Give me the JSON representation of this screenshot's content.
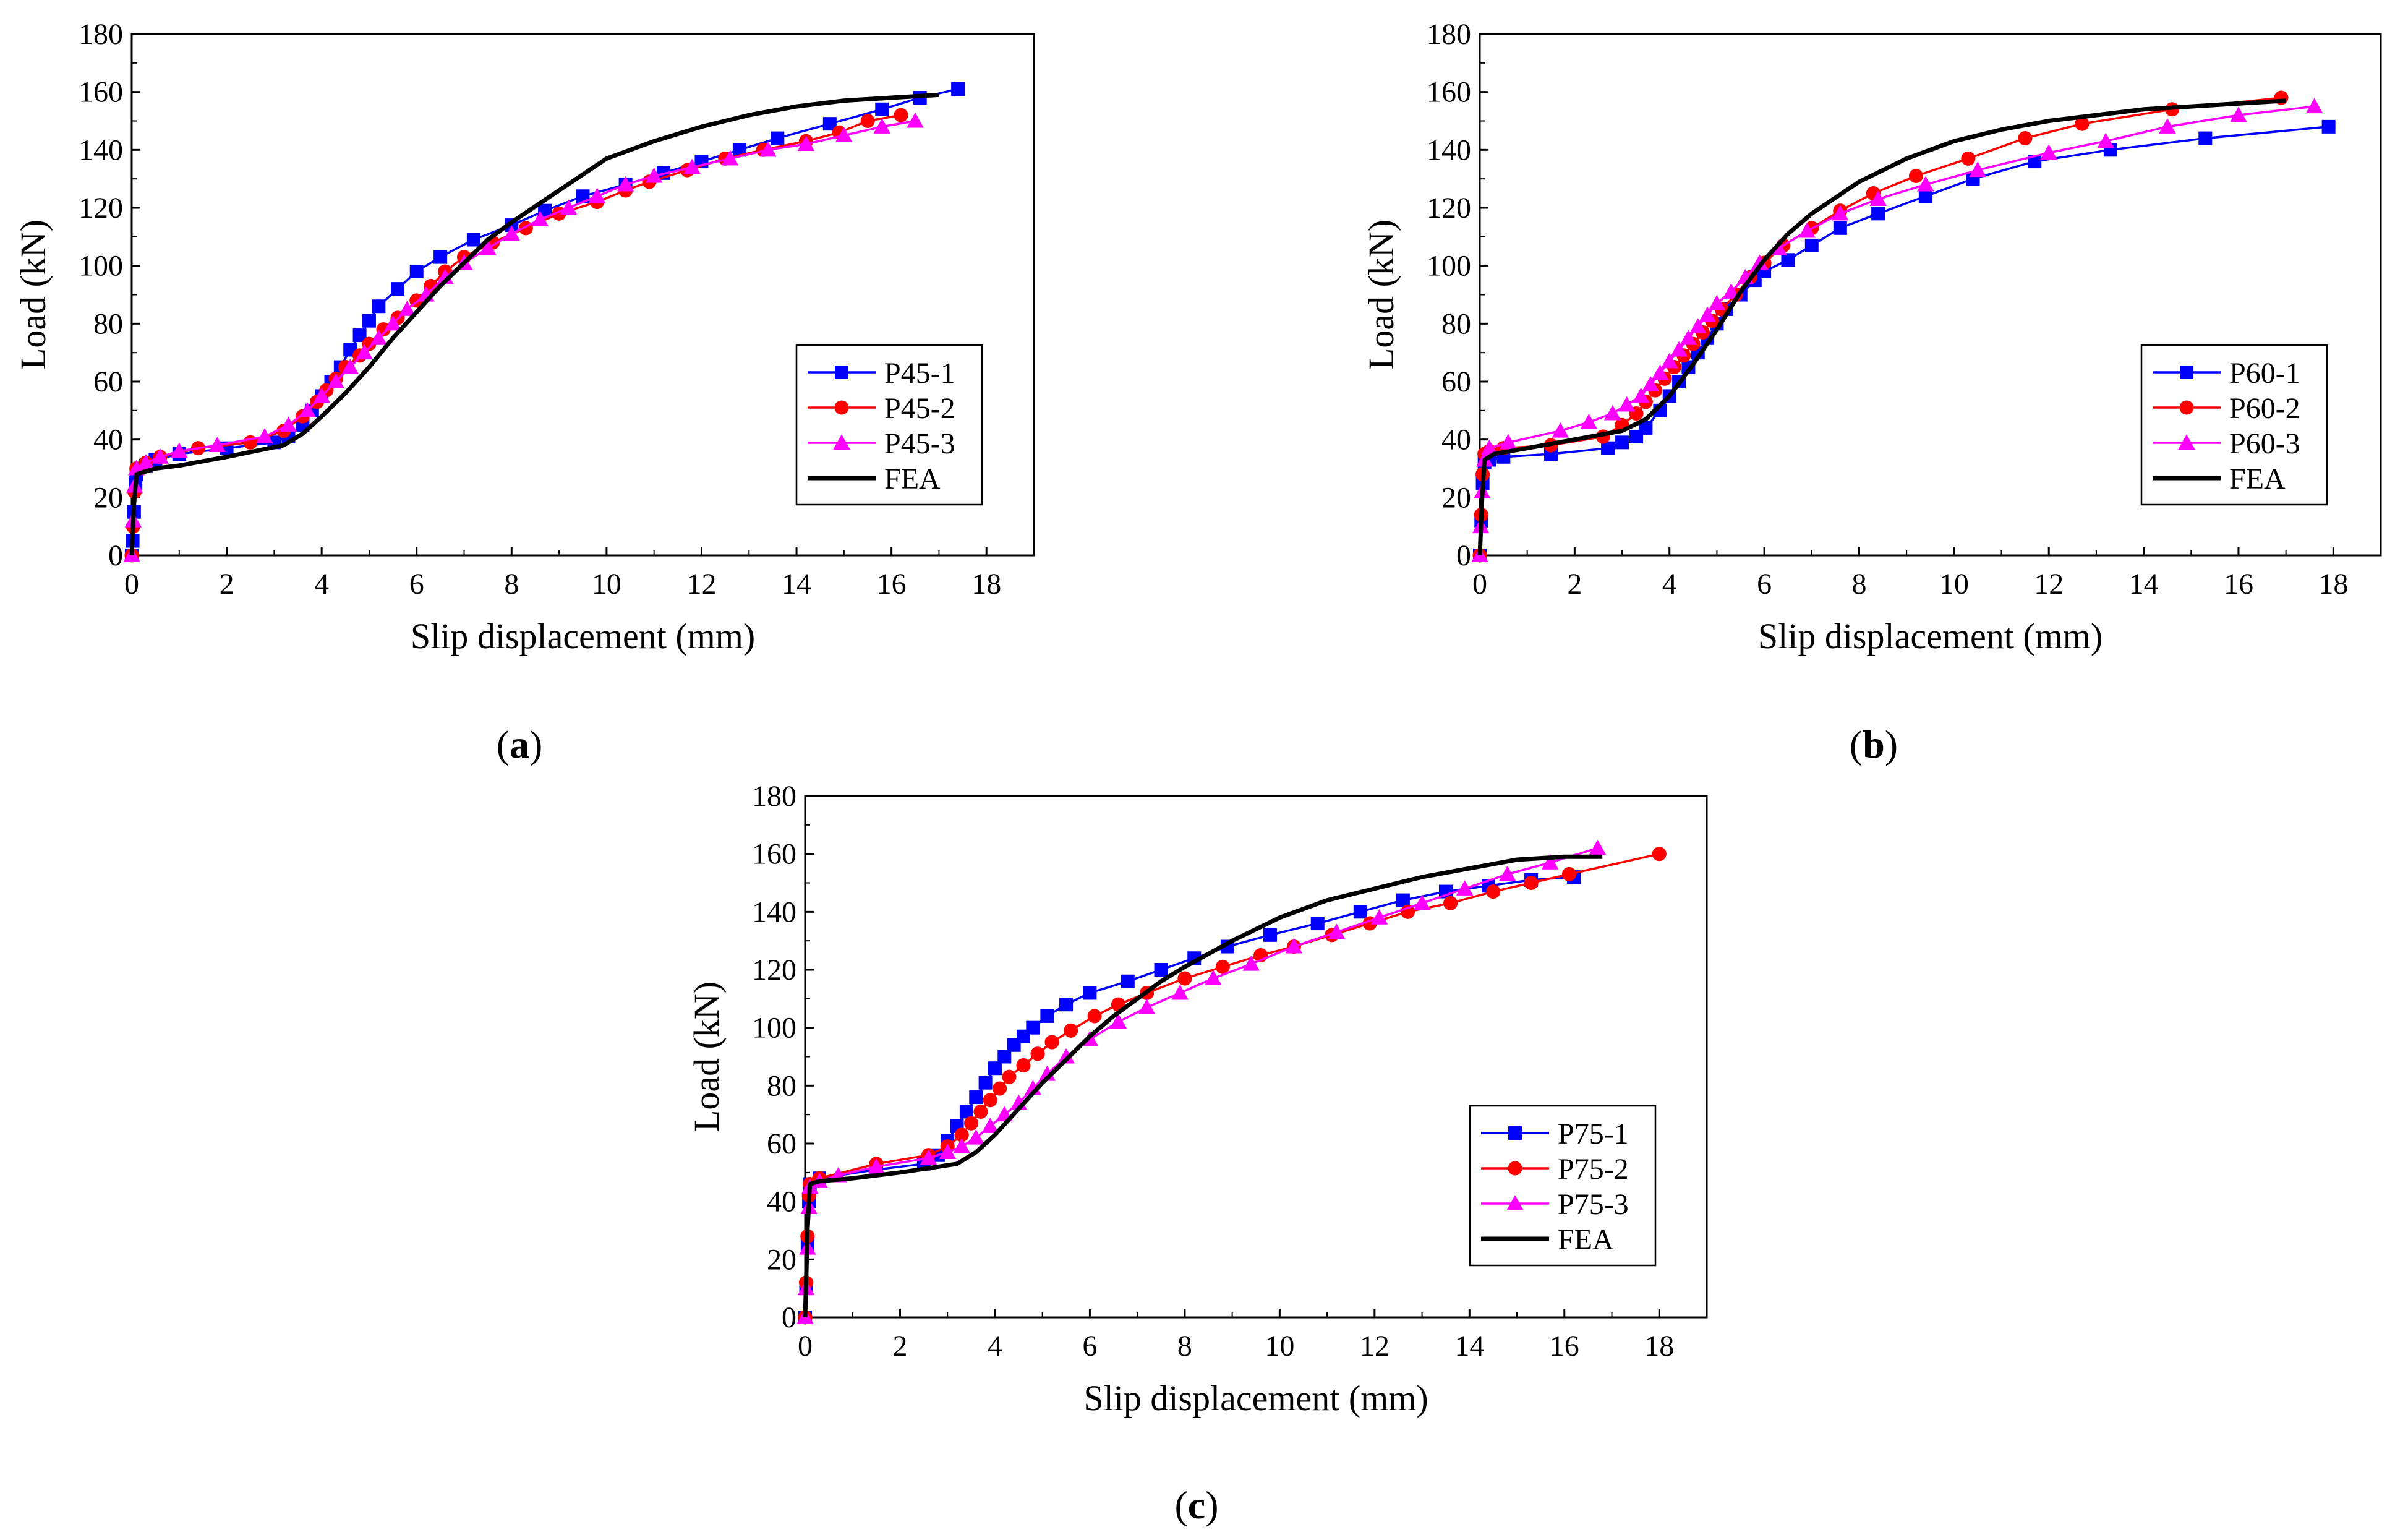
{
  "chart_data": [
    {
      "type": "line",
      "panel_label": "a",
      "xlabel": "Slip displacement (mm)",
      "ylabel": "Load (kN)",
      "xlim": [
        0,
        19
      ],
      "ylim": [
        0,
        180
      ],
      "xticks": [
        "0",
        "2",
        "4",
        "6",
        "8",
        "10",
        "12",
        "14",
        "16",
        "18"
      ],
      "yticks": [
        "0",
        "20",
        "40",
        "60",
        "80",
        "100",
        "120",
        "140",
        "160",
        "180"
      ],
      "legend_position": "lower-right",
      "series": [
        {
          "name": "P45-1",
          "color": "#0000ff",
          "marker": "square",
          "x": [
            0,
            0.02,
            0.05,
            0.08,
            0.1,
            0.3,
            0.5,
            1,
            2,
            3,
            3.3,
            3.6,
            3.8,
            4.0,
            4.2,
            4.4,
            4.6,
            4.8,
            5.0,
            5.2,
            5.6,
            6.0,
            6.5,
            7.2,
            8.0,
            8.7,
            9.5,
            10.4,
            11.2,
            12.0,
            12.8,
            13.6,
            14.7,
            15.8,
            16.6,
            17.4
          ],
          "y": [
            0,
            5,
            15,
            25,
            28,
            31,
            33,
            35,
            37,
            39,
            41,
            45,
            50,
            55,
            60,
            65,
            71,
            76,
            81,
            86,
            92,
            98,
            103,
            109,
            114,
            119,
            124,
            128,
            132,
            136,
            140,
            144,
            149,
            154,
            158,
            161
          ]
        },
        {
          "name": "P45-2",
          "color": "#ff0000",
          "marker": "circle",
          "x": [
            0,
            0.03,
            0.06,
            0.1,
            0.3,
            0.6,
            1.4,
            2.5,
            3.2,
            3.6,
            3.9,
            4.1,
            4.3,
            4.5,
            4.8,
            5.0,
            5.3,
            5.6,
            6.0,
            6.3,
            6.6,
            7.0,
            7.6,
            8.3,
            9.0,
            9.8,
            10.4,
            10.9,
            11.7,
            12.5,
            13.3,
            14.2,
            14.9,
            15.5,
            16.2
          ],
          "y": [
            0,
            10,
            22,
            30,
            32,
            34,
            37,
            39,
            43,
            48,
            53,
            57,
            61,
            65,
            69,
            73,
            78,
            82,
            88,
            93,
            98,
            103,
            108,
            113,
            118,
            122,
            126,
            129,
            133,
            137,
            140,
            143,
            146,
            150,
            152
          ]
        },
        {
          "name": "P45-3",
          "color": "#ff00ff",
          "marker": "triangle",
          "x": [
            0,
            0.03,
            0.06,
            0.1,
            0.3,
            0.6,
            1.0,
            1.8,
            2.8,
            3.3,
            3.7,
            4.0,
            4.3,
            4.6,
            4.9,
            5.2,
            5.5,
            5.8,
            6.2,
            6.6,
            7.0,
            7.5,
            8.0,
            8.6,
            9.2,
            9.8,
            10.4,
            11.0,
            11.8,
            12.6,
            13.4,
            14.2,
            15.0,
            15.8,
            16.5
          ],
          "y": [
            0,
            12,
            24,
            30,
            32,
            34,
            36,
            38,
            41,
            45,
            50,
            55,
            60,
            65,
            70,
            75,
            80,
            85,
            90,
            96,
            101,
            106,
            111,
            116,
            120,
            124,
            128,
            131,
            134,
            137,
            140,
            142,
            145,
            148,
            150
          ]
        },
        {
          "name": "FEA",
          "color": "#000000",
          "marker": "none",
          "x": [
            0,
            0.05,
            0.1,
            0.5,
            1,
            2,
            3.2,
            3.6,
            4.0,
            4.5,
            5.0,
            5.5,
            6.0,
            6.5,
            7.0,
            7.5,
            8.0,
            9.0,
            10.0,
            11.0,
            12.0,
            13.0,
            14.0,
            15.0,
            16.0,
            17.0
          ],
          "y": [
            0,
            18,
            28,
            30,
            31,
            34,
            38,
            42,
            48,
            56,
            65,
            75,
            84,
            93,
            101,
            109,
            115,
            126,
            137,
            143,
            148,
            152,
            155,
            157,
            158,
            159
          ]
        }
      ]
    },
    {
      "type": "line",
      "panel_label": "b",
      "xlabel": "Slip displacement (mm)",
      "ylabel": "Load (kN)",
      "xlim": [
        0,
        19
      ],
      "ylim": [
        0,
        180
      ],
      "xticks": [
        "0",
        "2",
        "4",
        "6",
        "8",
        "10",
        "12",
        "14",
        "16",
        "18"
      ],
      "yticks": [
        "0",
        "20",
        "40",
        "60",
        "80",
        "100",
        "120",
        "140",
        "160",
        "180"
      ],
      "legend_position": "lower-right",
      "series": [
        {
          "name": "P60-1",
          "color": "#0000ff",
          "marker": "square",
          "x": [
            0,
            0.03,
            0.06,
            0.1,
            0.2,
            0.5,
            1.5,
            2.7,
            3.0,
            3.3,
            3.5,
            3.8,
            4.0,
            4.2,
            4.4,
            4.6,
            4.8,
            5.0,
            5.2,
            5.5,
            5.8,
            6.0,
            6.5,
            7.0,
            7.6,
            8.4,
            9.4,
            10.4,
            11.7,
            13.3,
            15.3,
            17.9
          ],
          "y": [
            0,
            12,
            25,
            32,
            33,
            34,
            35,
            37,
            39,
            41,
            44,
            50,
            55,
            60,
            65,
            70,
            75,
            80,
            85,
            90,
            95,
            98,
            102,
            107,
            113,
            118,
            124,
            130,
            136,
            140,
            144,
            148
          ]
        },
        {
          "name": "P60-2",
          "color": "#ff0000",
          "marker": "circle",
          "x": [
            0,
            0.03,
            0.06,
            0.1,
            0.2,
            0.5,
            1.5,
            2.6,
            3.0,
            3.3,
            3.5,
            3.7,
            3.9,
            4.1,
            4.3,
            4.5,
            4.7,
            4.9,
            5.1,
            5.4,
            5.7,
            6.0,
            6.4,
            7.0,
            7.6,
            8.3,
            9.2,
            10.3,
            11.5,
            12.7,
            14.6,
            16.9
          ],
          "y": [
            0,
            14,
            28,
            35,
            36,
            37,
            38,
            41,
            45,
            49,
            53,
            57,
            61,
            65,
            69,
            73,
            77,
            81,
            85,
            90,
            96,
            101,
            107,
            113,
            119,
            125,
            131,
            137,
            144,
            149,
            154,
            158
          ]
        },
        {
          "name": "P60-3",
          "color": "#ff00ff",
          "marker": "triangle",
          "x": [
            0,
            0.02,
            0.05,
            0.1,
            0.2,
            0.6,
            1.7,
            2.3,
            2.8,
            3.1,
            3.4,
            3.6,
            3.8,
            4.0,
            4.2,
            4.4,
            4.6,
            4.8,
            5.0,
            5.3,
            5.6,
            5.9,
            6.3,
            6.9,
            7.6,
            8.4,
            9.4,
            10.5,
            12.0,
            13.2,
            14.5,
            16.0,
            17.6
          ],
          "y": [
            0,
            10,
            22,
            33,
            37,
            39,
            43,
            46,
            49,
            52,
            55,
            59,
            63,
            67,
            71,
            75,
            79,
            83,
            87,
            91,
            96,
            101,
            106,
            112,
            118,
            123,
            128,
            133,
            139,
            143,
            148,
            152,
            155
          ]
        },
        {
          "name": "FEA",
          "color": "#000000",
          "marker": "none",
          "x": [
            0,
            0.05,
            0.1,
            0.3,
            1,
            2,
            3.0,
            3.5,
            4.0,
            4.5,
            5.0,
            5.5,
            6.0,
            6.5,
            7.0,
            8.0,
            9.0,
            10.0,
            11.0,
            12.0,
            13.0,
            14.0,
            15.0,
            16.0,
            17.0
          ],
          "y": [
            0,
            20,
            33,
            35,
            37,
            40,
            43,
            47,
            55,
            66,
            78,
            91,
            102,
            111,
            118,
            129,
            137,
            143,
            147,
            150,
            152,
            154,
            155,
            156,
            157
          ]
        }
      ]
    },
    {
      "type": "line",
      "panel_label": "c",
      "xlabel": "Slip displacement (mm)",
      "ylabel": "Load (kN)",
      "xlim": [
        0,
        19
      ],
      "ylim": [
        0,
        180
      ],
      "xticks": [
        "0",
        "2",
        "4",
        "6",
        "8",
        "10",
        "12",
        "14",
        "16",
        "18"
      ],
      "yticks": [
        "0",
        "20",
        "40",
        "60",
        "80",
        "100",
        "120",
        "140",
        "160",
        "180"
      ],
      "legend_position": "lower-right",
      "series": [
        {
          "name": "P75-1",
          "color": "#0000ff",
          "marker": "square",
          "x": [
            0,
            0.02,
            0.05,
            0.08,
            0.1,
            0.3,
            1.5,
            2.5,
            2.8,
            3.0,
            3.2,
            3.4,
            3.6,
            3.8,
            4.0,
            4.2,
            4.4,
            4.6,
            4.8,
            5.1,
            5.5,
            6.0,
            6.8,
            7.5,
            8.2,
            8.9,
            9.8,
            10.8,
            11.7,
            12.6,
            13.5,
            14.4,
            15.3,
            16.2
          ],
          "y": [
            0,
            10,
            25,
            40,
            46,
            48,
            51,
            53,
            56,
            61,
            66,
            71,
            76,
            81,
            86,
            90,
            94,
            97,
            100,
            104,
            108,
            112,
            116,
            120,
            124,
            128,
            132,
            136,
            140,
            144,
            147,
            149,
            151,
            152
          ]
        },
        {
          "name": "P75-2",
          "color": "#ff0000",
          "marker": "circle",
          "x": [
            0,
            0.02,
            0.05,
            0.08,
            0.1,
            0.3,
            1.5,
            2.6,
            3.0,
            3.3,
            3.5,
            3.7,
            3.9,
            4.1,
            4.3,
            4.6,
            4.9,
            5.2,
            5.6,
            6.1,
            6.6,
            7.2,
            8.0,
            8.8,
            9.6,
            10.3,
            11.1,
            11.9,
            12.7,
            13.6,
            14.5,
            15.3,
            16.1,
            18.0
          ],
          "y": [
            0,
            12,
            28,
            42,
            46,
            48,
            53,
            56,
            59,
            63,
            67,
            71,
            75,
            79,
            83,
            87,
            91,
            95,
            99,
            104,
            108,
            112,
            117,
            121,
            125,
            128,
            132,
            136,
            140,
            143,
            147,
            150,
            153,
            160
          ]
        },
        {
          "name": "P75-3",
          "color": "#ff00ff",
          "marker": "triangle",
          "x": [
            0,
            0.02,
            0.05,
            0.08,
            0.1,
            0.3,
            0.7,
            1.5,
            2.6,
            3.0,
            3.3,
            3.6,
            3.9,
            4.2,
            4.5,
            4.8,
            5.1,
            5.5,
            6.0,
            6.6,
            7.2,
            7.9,
            8.6,
            9.4,
            10.3,
            11.2,
            12.1,
            13.0,
            13.9,
            14.8,
            15.7,
            16.7
          ],
          "y": [
            0,
            10,
            24,
            38,
            45,
            47,
            49,
            52,
            55,
            57,
            59,
            62,
            66,
            70,
            74,
            79,
            84,
            90,
            96,
            102,
            107,
            112,
            117,
            122,
            128,
            133,
            138,
            143,
            148,
            153,
            157,
            162
          ]
        },
        {
          "name": "FEA",
          "color": "#000000",
          "marker": "none",
          "x": [
            0,
            0.05,
            0.1,
            0.3,
            1,
            2,
            3.2,
            3.6,
            4.0,
            4.5,
            5.0,
            5.5,
            6.0,
            6.5,
            7.0,
            7.5,
            8.0,
            9.0,
            10.0,
            11.0,
            12.0,
            13.0,
            14.0,
            15.0,
            16.0,
            16.8
          ],
          "y": [
            0,
            30,
            46,
            47,
            48,
            50,
            53,
            57,
            63,
            72,
            81,
            89,
            97,
            104,
            110,
            116,
            121,
            130,
            138,
            144,
            148,
            152,
            155,
            158,
            159,
            159
          ]
        }
      ]
    }
  ]
}
